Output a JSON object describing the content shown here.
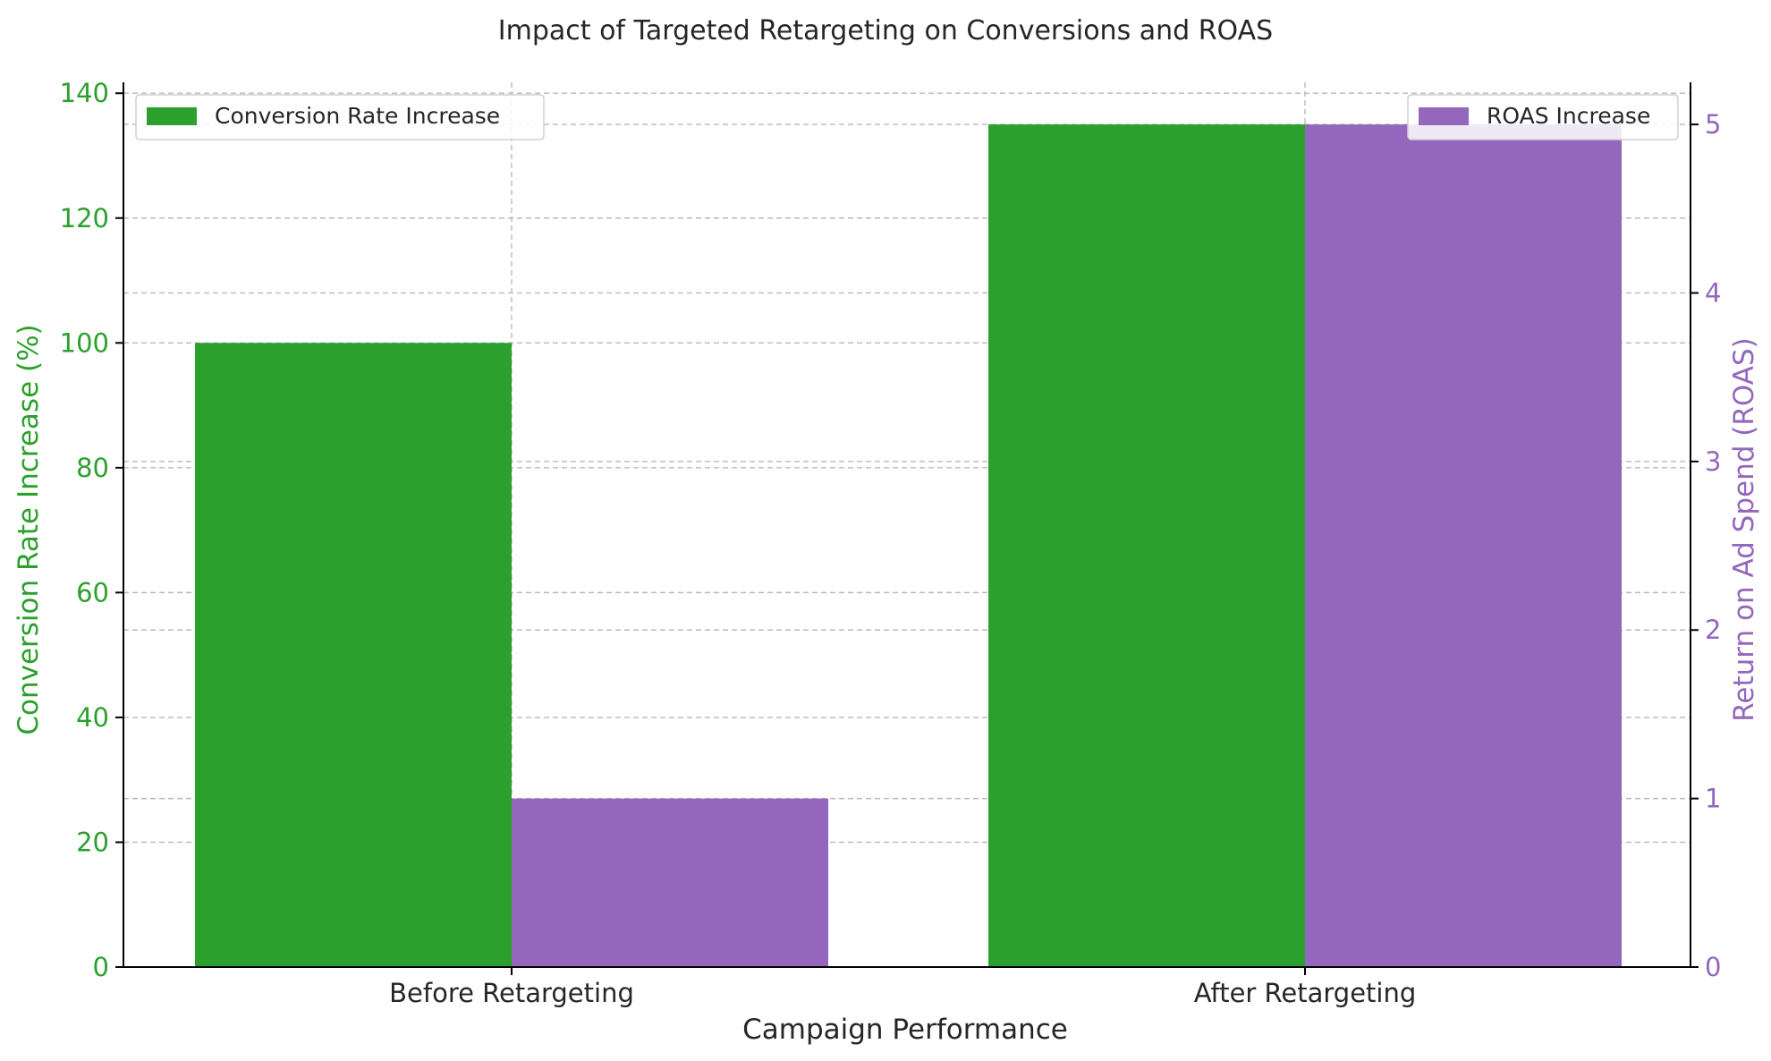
{
  "chart_data": {
    "type": "bar",
    "title": "Impact of Targeted Retargeting on Conversions and ROAS",
    "xlabel": "Campaign Performance",
    "categories": [
      "Before Retargeting",
      "After Retargeting"
    ],
    "grid": true,
    "series": [
      {
        "name": "Conversion Rate Increase",
        "axis": "left",
        "color": "#2ca02c",
        "values": [
          100,
          135
        ]
      },
      {
        "name": "ROAS Increase",
        "axis": "right",
        "color": "#9467bd",
        "values": [
          1,
          5
        ]
      }
    ],
    "left_axis": {
      "label": "Conversion Rate Increase (%)",
      "color": "#2ca02c",
      "ylim": [
        0,
        141.75
      ],
      "ticks": [
        0,
        20,
        40,
        60,
        80,
        100,
        120,
        140
      ]
    },
    "right_axis": {
      "label": "Return on Ad Spend (ROAS)",
      "color": "#9467bd",
      "ylim": [
        0,
        5.25
      ],
      "ticks": [
        0,
        1,
        2,
        3,
        4,
        5
      ]
    },
    "legends": [
      {
        "position": "top-left",
        "series": "Conversion Rate Increase"
      },
      {
        "position": "top-right",
        "series": "ROAS Increase"
      }
    ]
  }
}
